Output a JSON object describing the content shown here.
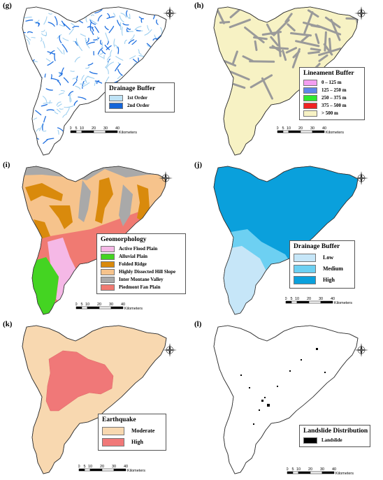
{
  "panels": [
    {
      "id": "g",
      "label": "(g)",
      "legend": {
        "title": "Drainage Buffer",
        "items": [
          {
            "label": "1st Order",
            "color": "#bfe3f6"
          },
          {
            "label": "2nd Order",
            "color": "#1565d8"
          }
        ]
      }
    },
    {
      "id": "h",
      "label": "(h)",
      "legend": {
        "title": "Lineament Buffer",
        "items": [
          {
            "label": "0 – 125 m",
            "color": "#f39ef0"
          },
          {
            "label": "125 – 250 m",
            "color": "#5f86e8"
          },
          {
            "label": "250 – 375 m",
            "color": "#2ee82e"
          },
          {
            "label": "375 – 500 m",
            "color": "#f02222"
          },
          {
            "label": "> 500 m",
            "color": "#f7f2c4"
          }
        ]
      }
    },
    {
      "id": "i",
      "label": "(i)",
      "legend": {
        "title": "Geomorphology",
        "items": [
          {
            "label": "Active Flood Plain",
            "color": "#f5b8e6"
          },
          {
            "label": "Alluvial Plain",
            "color": "#44d422"
          },
          {
            "label": "Folded Ridge",
            "color": "#d98a0c"
          },
          {
            "label": "Highly Dissected Hill Slope",
            "color": "#f6c38c"
          },
          {
            "label": "Inter Montane Valley",
            "color": "#a9a9a9"
          },
          {
            "label": "Piedmont Fan Plain",
            "color": "#f07a72"
          }
        ]
      }
    },
    {
      "id": "j",
      "label": "(j)",
      "legend": {
        "title": "Drainage Buffer",
        "items": [
          {
            "label": "Low",
            "color": "#c6e6f8"
          },
          {
            "label": "Medium",
            "color": "#6dd0f2"
          },
          {
            "label": "High",
            "color": "#0aa0dc"
          }
        ]
      }
    },
    {
      "id": "k",
      "label": "(k)",
      "legend": {
        "title": "Earthquake",
        "items": [
          {
            "label": "Moderate",
            "color": "#f8d8b0"
          },
          {
            "label": "High",
            "color": "#f07878"
          }
        ]
      }
    },
    {
      "id": "l",
      "label": "(l)",
      "legend": {
        "title": "Landslide Distribution",
        "items": [
          {
            "label": "Landslide",
            "color": "#000000"
          }
        ]
      }
    }
  ],
  "scale": {
    "ticks": [
      "0",
      "5",
      "10",
      "20",
      "30",
      "40"
    ],
    "unit": "Kilometers"
  },
  "compass": {
    "icon": "north-arrow-compass-icon"
  },
  "colors": {
    "outline": "#333333",
    "lineament": "#9a9a9a",
    "drainage_light": "#9fd0f0",
    "drainage_dark": "#1e6fe0"
  }
}
